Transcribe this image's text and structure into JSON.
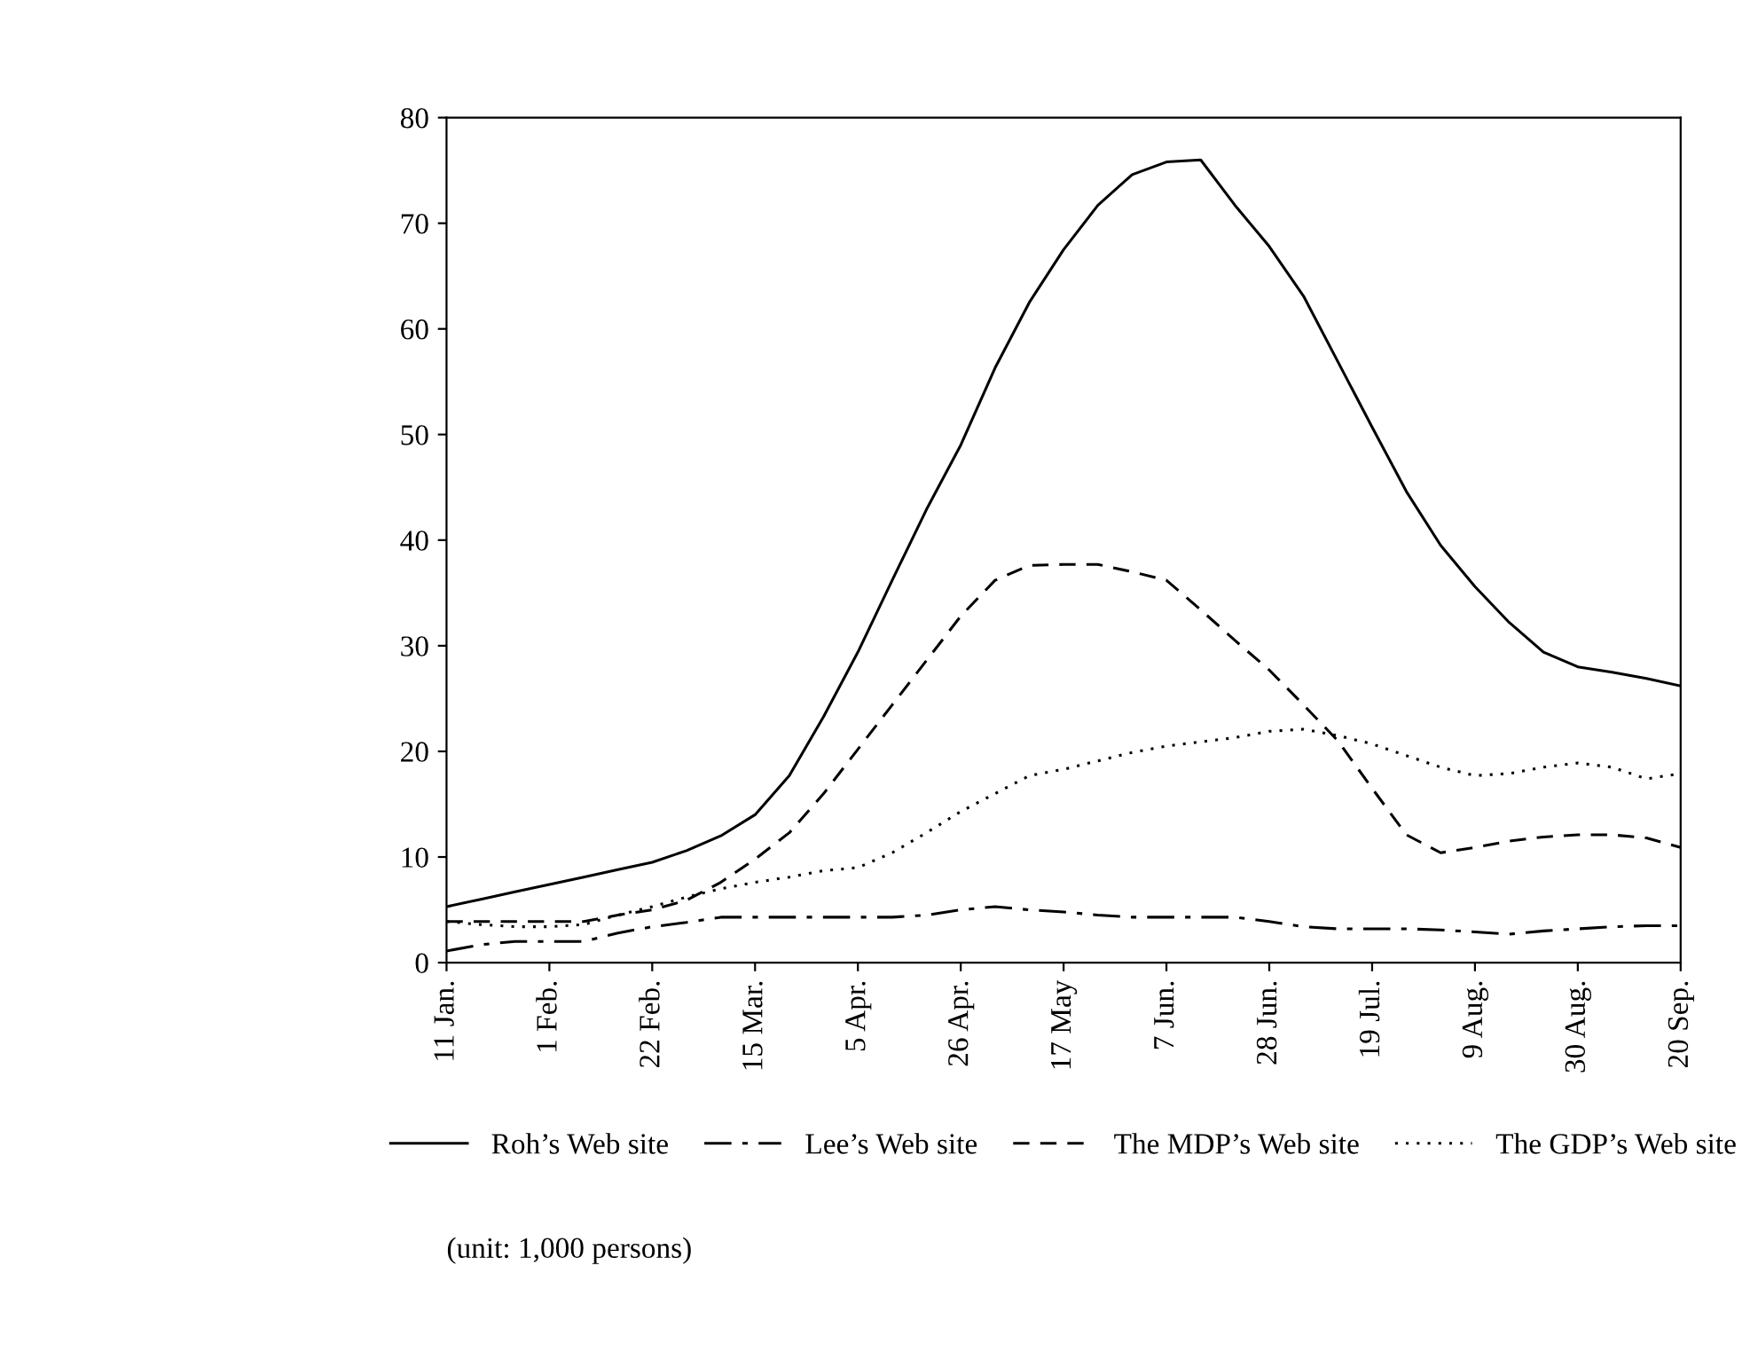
{
  "chart_data": {
    "type": "line",
    "categories": [
      "11 Jan.",
      null,
      null,
      "1 Feb.",
      null,
      null,
      "22 Feb.",
      null,
      null,
      "15 Mar.",
      null,
      null,
      "5 Apr.",
      null,
      null,
      "26 Apr.",
      null,
      null,
      "17 May",
      null,
      null,
      "7 Jun.",
      null,
      null,
      "28 Jun.",
      null,
      null,
      "19 Jul.",
      null,
      null,
      "9 Aug.",
      null,
      null,
      "30 Aug.",
      null,
      null,
      "20 Sep."
    ],
    "series": [
      {
        "name": "Roh’s Web site",
        "color": "#000000",
        "line_style": "solid",
        "values": [
          5.3,
          6.0,
          6.7,
          7.4,
          8.1,
          8.8,
          9.5,
          10.6,
          12.0,
          14.0,
          17.7,
          23.3,
          29.4,
          36.2,
          42.9,
          49.0,
          56.3,
          62.5,
          67.5,
          71.7,
          74.6,
          75.8,
          76.0,
          71.7,
          67.8,
          63.1,
          56.9,
          50.7,
          44.6,
          39.5,
          35.6,
          32.2,
          29.4,
          28.0,
          27.5,
          26.9,
          26.2
        ]
      },
      {
        "name": "Lee’s Web site",
        "color": "#000000",
        "line_style": "dashdot",
        "values": [
          1.1,
          1.7,
          2.0,
          2.0,
          2.0,
          2.8,
          3.4,
          3.8,
          4.3,
          4.3,
          4.3,
          4.3,
          4.3,
          4.3,
          4.5,
          5.0,
          5.3,
          5.0,
          4.8,
          4.5,
          4.3,
          4.3,
          4.3,
          4.3,
          3.9,
          3.4,
          3.2,
          3.2,
          3.2,
          3.1,
          2.9,
          2.7,
          3.0,
          3.2,
          3.4,
          3.5,
          3.5
        ]
      },
      {
        "name": "The MDP’s Web site",
        "color": "#000000",
        "line_style": "dashed",
        "values": [
          3.9,
          3.9,
          3.9,
          3.9,
          3.9,
          4.5,
          5.0,
          5.9,
          7.6,
          9.8,
          12.3,
          16.0,
          20.2,
          24.4,
          28.6,
          32.8,
          36.2,
          37.6,
          37.7,
          37.7,
          37.0,
          36.2,
          33.4,
          30.5,
          27.7,
          24.4,
          21.0,
          16.5,
          12.1,
          10.4,
          10.9,
          11.5,
          11.9,
          12.1,
          12.1,
          11.8,
          10.9
        ]
      },
      {
        "name": "The GDP’s Web site",
        "color": "#000000",
        "line_style": "dotted",
        "values": [
          3.9,
          3.6,
          3.4,
          3.4,
          3.6,
          4.5,
          5.3,
          6.2,
          7.0,
          7.6,
          8.1,
          8.7,
          9.0,
          10.4,
          12.3,
          14.3,
          16.0,
          17.7,
          18.3,
          19.1,
          19.9,
          20.5,
          20.9,
          21.3,
          21.9,
          22.1,
          21.5,
          20.7,
          19.6,
          18.5,
          17.7,
          17.9,
          18.5,
          18.9,
          18.5,
          17.4,
          17.9
        ]
      }
    ],
    "ylim": [
      0,
      80
    ],
    "yticks": [
      0,
      10,
      20,
      30,
      40,
      50,
      60,
      70,
      80
    ],
    "grid": false,
    "legend": "bottom",
    "marker": "none",
    "annotations": [
      "(unit: 1,000 persons)"
    ]
  }
}
